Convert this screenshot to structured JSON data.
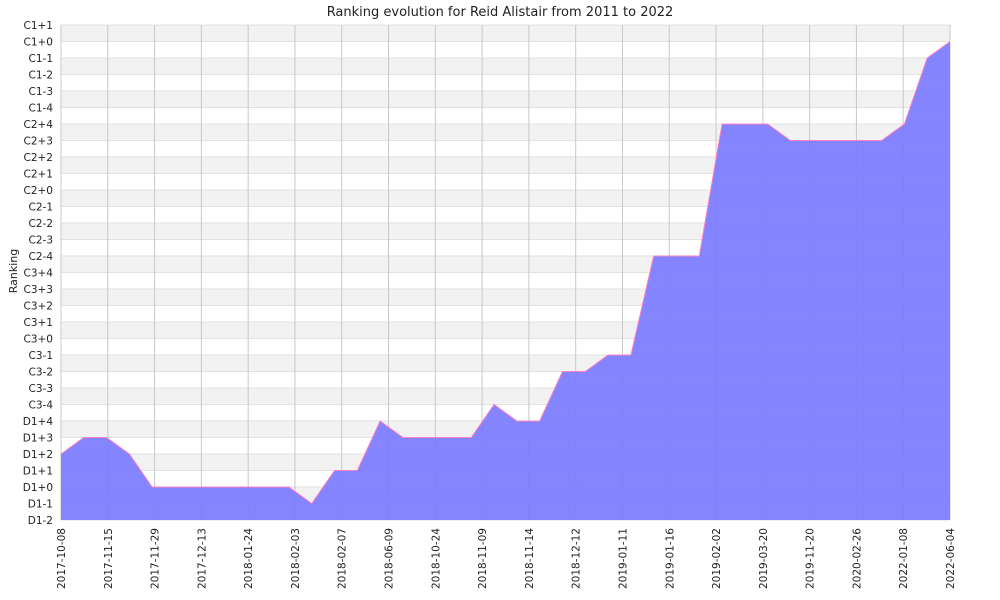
{
  "chart_data": {
    "type": "area",
    "title": "Ranking evolution for Reid Alistair from 2011 to 2022",
    "ylabel": "Ranking",
    "xlabel": "",
    "y_levels": [
      "D1-2",
      "D1-1",
      "D1+0",
      "D1+1",
      "D1+2",
      "D1+3",
      "D1+4",
      "C3-4",
      "C3-3",
      "C3-2",
      "C3-1",
      "C3+0",
      "C3+1",
      "C3+2",
      "C3+3",
      "C3+4",
      "C2-4",
      "C2-3",
      "C2-2",
      "C2-1",
      "C2+0",
      "C2+1",
      "C2+2",
      "C2+3",
      "C2+4",
      "C1-4",
      "C1-3",
      "C1-2",
      "C1-1",
      "C1+0",
      "C1+1"
    ],
    "x_tick_labels": [
      "2017-10-08",
      "2017-11-15",
      "2017-11-29",
      "2017-12-13",
      "2018-01-24",
      "2018-02-03",
      "2018-02-07",
      "2018-06-09",
      "2018-10-24",
      "2018-11-09",
      "2018-11-14",
      "2018-12-12",
      "2019-01-11",
      "2019-01-16",
      "2019-02-02",
      "2019-03-20",
      "2019-11-20",
      "2020-02-26",
      "2022-01-08",
      "2022-06-04"
    ],
    "series": [
      {
        "values": [
          "D1+2",
          "D1+3",
          "D1+3",
          "D1+2",
          "D1+0",
          "D1+0",
          "D1+0",
          "D1+0",
          "D1+0",
          "D1+0",
          "D1+0",
          "D1-1",
          "D1+1",
          "D1+1",
          "D1+4",
          "D1+3",
          "D1+3",
          "D1+3",
          "D1+3",
          "C3-4",
          "D1+4",
          "D1+4",
          "C3-2",
          "C3-2",
          "C3-1",
          "C3-1",
          "C2-4",
          "C2-4",
          "C2-4",
          "C2+4",
          "C2+4",
          "C2+4",
          "C2+3",
          "C2+3",
          "C2+3",
          "C2+3",
          "C2+3",
          "C2+4",
          "C1-1",
          "C1+0"
        ]
      }
    ],
    "grid": true,
    "colors": {
      "fill": "#7b7bff",
      "line": "#ff80c0",
      "band": "#f2f2f2",
      "grid": "#c8c8c8"
    }
  }
}
